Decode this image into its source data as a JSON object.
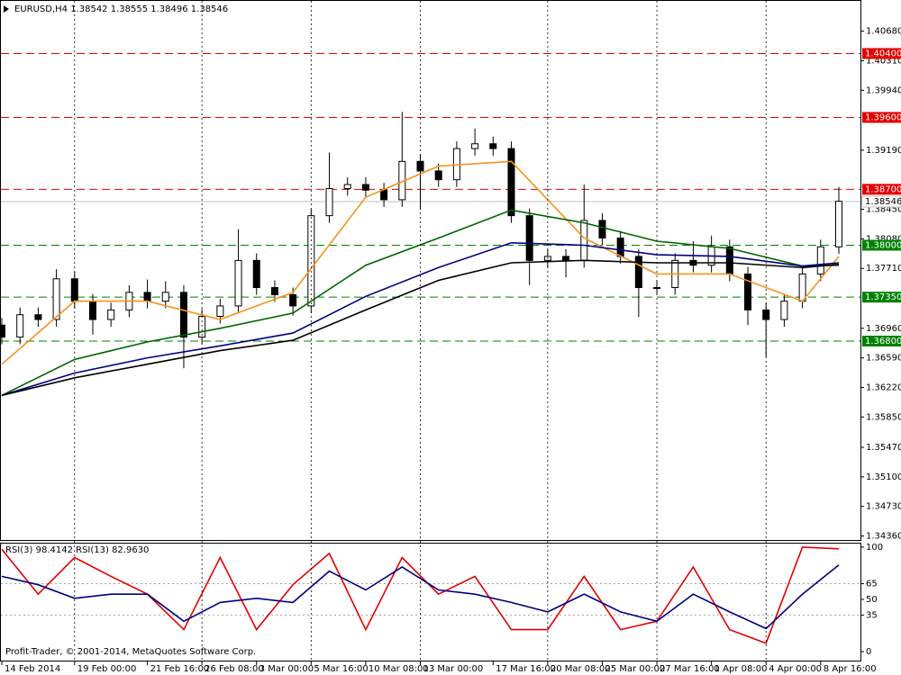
{
  "chart_data": [
    {
      "type": "candlestick",
      "title": "EURUSD,H4  1.38542 1.38555 1.38496 1.38546",
      "open": [
        1.37,
        1.3685,
        1.3713,
        1.3707,
        1.3758,
        1.373,
        1.3707,
        1.3719,
        1.3741,
        1.373,
        1.3741,
        1.3685,
        1.3711,
        1.3724,
        1.3781,
        1.3747,
        1.3738,
        1.3724,
        1.3837,
        1.3871,
        1.3876,
        1.3869,
        1.3857,
        1.3905,
        1.3893,
        1.3882,
        1.3921,
        1.3927,
        1.3921,
        1.3837,
        1.3781,
        1.3786,
        1.3781,
        1.3831,
        1.3809,
        1.3786,
        1.3747,
        1.3747,
        1.3781,
        1.3775,
        1.3798,
        1.3764,
        1.3719,
        1.3707,
        1.373,
        1.3764,
        1.3798
      ],
      "high": [
        1.3709,
        1.3722,
        1.3722,
        1.377,
        1.3767,
        1.3739,
        1.3728,
        1.375,
        1.3757,
        1.3755,
        1.375,
        1.372,
        1.3733,
        1.382,
        1.379,
        1.3756,
        1.3747,
        1.3846,
        1.3916,
        1.3885,
        1.3885,
        1.3878,
        1.3967,
        1.3914,
        1.3902,
        1.393,
        1.3946,
        1.3936,
        1.393,
        1.3846,
        1.3795,
        1.3795,
        1.3876,
        1.384,
        1.3818,
        1.3795,
        1.3756,
        1.379,
        1.3805,
        1.3812,
        1.3807,
        1.3773,
        1.3728,
        1.3739,
        1.3773,
        1.3807,
        1.3873
      ],
      "low": [
        1.3676,
        1.3676,
        1.3698,
        1.3698,
        1.3721,
        1.3688,
        1.3698,
        1.371,
        1.3721,
        1.3721,
        1.3646,
        1.3676,
        1.3702,
        1.3715,
        1.3738,
        1.3729,
        1.3712,
        1.3715,
        1.3828,
        1.3862,
        1.386,
        1.3848,
        1.3848,
        1.3845,
        1.3873,
        1.3873,
        1.3912,
        1.3912,
        1.3828,
        1.375,
        1.3772,
        1.376,
        1.3772,
        1.38,
        1.3777,
        1.371,
        1.3738,
        1.3738,
        1.3766,
        1.3766,
        1.3755,
        1.37,
        1.366,
        1.3698,
        1.3721,
        1.3755,
        1.3789
      ],
      "close": [
        1.3685,
        1.3713,
        1.3707,
        1.3758,
        1.373,
        1.3707,
        1.3719,
        1.3741,
        1.373,
        1.3741,
        1.3685,
        1.3711,
        1.3724,
        1.3781,
        1.3747,
        1.3738,
        1.3724,
        1.3837,
        1.3871,
        1.3876,
        1.3869,
        1.3857,
        1.3905,
        1.3893,
        1.3882,
        1.3921,
        1.3927,
        1.3921,
        1.3837,
        1.3781,
        1.3786,
        1.3781,
        1.3831,
        1.3809,
        1.3786,
        1.3747,
        1.3747,
        1.3781,
        1.3775,
        1.3798,
        1.3764,
        1.3719,
        1.3707,
        1.373,
        1.3764,
        1.3798,
        1.3855
      ],
      "series": [
        {
          "color": "#f7931e",
          "x": [
            0,
            4,
            8,
            12,
            16,
            20,
            24,
            28,
            32,
            36,
            40,
            44,
            46
          ],
          "values": [
            1.3651,
            1.373,
            1.373,
            1.3707,
            1.3741,
            1.386,
            1.3899,
            1.3905,
            1.3809,
            1.3764,
            1.3764,
            1.373,
            1.3786
          ]
        },
        {
          "color": "#006400",
          "x": [
            0,
            4,
            8,
            12,
            16,
            20,
            24,
            28,
            32,
            36,
            40,
            44,
            46
          ],
          "values": [
            1.3612,
            1.3657,
            1.3679,
            1.3696,
            1.3715,
            1.3775,
            1.3809,
            1.3844,
            1.3828,
            1.3805,
            1.3796,
            1.3774,
            1.3775
          ]
        },
        {
          "color": "#000080",
          "x": [
            0,
            4,
            8,
            12,
            16,
            20,
            24,
            28,
            32,
            36,
            40,
            44,
            46
          ],
          "values": [
            1.3612,
            1.364,
            1.3659,
            1.3674,
            1.369,
            1.3736,
            1.3772,
            1.3803,
            1.38,
            1.3788,
            1.3786,
            1.3774,
            1.3778
          ]
        },
        {
          "color": "#000000",
          "x": [
            0,
            4,
            8,
            12,
            16,
            20,
            24,
            28,
            32,
            36,
            40,
            44,
            46
          ],
          "values": [
            1.3612,
            1.3634,
            1.3651,
            1.3668,
            1.3681,
            1.3719,
            1.3756,
            1.3778,
            1.3781,
            1.3778,
            1.3778,
            1.3772,
            1.3776
          ]
        }
      ],
      "xlim": [
        0,
        46
      ],
      "xticks": [
        {
          "value": 0,
          "label": "14 Feb 2014"
        },
        {
          "value": 4,
          "label": "19 Feb 00:00"
        },
        {
          "value": 8,
          "label": "21 Feb 16:00"
        },
        {
          "value": 11,
          "label": "26 Feb 08:00"
        },
        {
          "value": 14,
          "label": "3 Mar 00:00"
        },
        {
          "value": 17,
          "label": "5 Mar 16:00"
        },
        {
          "value": 20,
          "label": "10 Mar 08:00"
        },
        {
          "value": 23,
          "label": "13 Mar 00:00"
        },
        {
          "value": 27,
          "label": "17 Mar 16:00"
        },
        {
          "value": 30,
          "label": "20 Mar 08:00"
        },
        {
          "value": 33,
          "label": "25 Mar 00:00"
        },
        {
          "value": 36,
          "label": "27 Mar 16:00"
        },
        {
          "value": 39,
          "label": "1 Apr 08:00"
        },
        {
          "value": 42,
          "label": "4 Apr 00:00"
        },
        {
          "value": 45,
          "label": "8 Apr 16:00"
        }
      ],
      "ylim": [
        1.3431,
        1.4107
      ],
      "yticks": [
        {
          "value": 1.4068,
          "label": "1.40680"
        },
        {
          "value": 1.4031,
          "label": "1.40310"
        },
        {
          "value": 1.3994,
          "label": "1.39940"
        },
        {
          "value": 1.3919,
          "label": "1.39190"
        },
        {
          "value": 1.3845,
          "label": "1.38450"
        },
        {
          "value": 1.3808,
          "label": "1.38080"
        },
        {
          "value": 1.3771,
          "label": "1.37710"
        },
        {
          "value": 1.3696,
          "label": "1.36960"
        },
        {
          "value": 1.3659,
          "label": "1.36590"
        },
        {
          "value": 1.3622,
          "label": "1.36220"
        },
        {
          "value": 1.3585,
          "label": "1.35850"
        },
        {
          "value": 1.3547,
          "label": "1.35470"
        },
        {
          "value": 1.351,
          "label": "1.35100"
        },
        {
          "value": 1.3473,
          "label": "1.34730"
        },
        {
          "value": 1.3436,
          "label": "1.34360"
        }
      ],
      "levels": [
        {
          "value": 1.404,
          "label": "1.40400",
          "color": "#e00000"
        },
        {
          "value": 1.396,
          "label": "1.39600",
          "color": "#e00000"
        },
        {
          "value": 1.387,
          "label": "1.38700",
          "color": "#e00000"
        },
        {
          "value": 1.38,
          "label": "1.38000",
          "color": "#008000"
        },
        {
          "value": 1.3735,
          "label": "1.37350",
          "color": "#008000"
        },
        {
          "value": 1.368,
          "label": "1.36800",
          "color": "#008000"
        }
      ],
      "last_price": {
        "value": 1.38546,
        "label": "1.38546"
      },
      "grid": true
    },
    {
      "type": "line",
      "title": "RSI(3) 98.4142  RSI(13) 82.9630",
      "series": [
        {
          "color": "#e00000",
          "x": [
            0,
            2,
            4,
            6,
            8,
            10,
            12,
            14,
            16,
            18,
            20,
            22,
            24,
            26,
            28,
            30,
            32,
            34,
            36,
            38,
            40,
            42,
            44,
            46
          ],
          "values": [
            98,
            55,
            90,
            72,
            55,
            21,
            90,
            21,
            64,
            94,
            21,
            90,
            55,
            72,
            21,
            21,
            72,
            21,
            29,
            81,
            21,
            8,
            100,
            98.4
          ]
        },
        {
          "color": "#000080",
          "x": [
            0,
            2,
            4,
            6,
            8,
            10,
            12,
            14,
            16,
            18,
            20,
            22,
            24,
            26,
            28,
            30,
            32,
            34,
            36,
            38,
            40,
            42,
            44,
            46
          ],
          "values": [
            72,
            64,
            51,
            55,
            55,
            29,
            47,
            51,
            47,
            77,
            59,
            81,
            59,
            55,
            47,
            38,
            55,
            38,
            29,
            55,
            38,
            22,
            55,
            83
          ]
        }
      ],
      "xlim": [
        0,
        46
      ],
      "ylim": [
        -9.5,
        103.4
      ],
      "yticks": [
        100,
        65,
        50,
        35,
        0
      ],
      "levels": [
        65,
        35
      ],
      "annotation": "Profit-Trader, © 2001-2014, MetaQuotes Software Corp."
    }
  ]
}
